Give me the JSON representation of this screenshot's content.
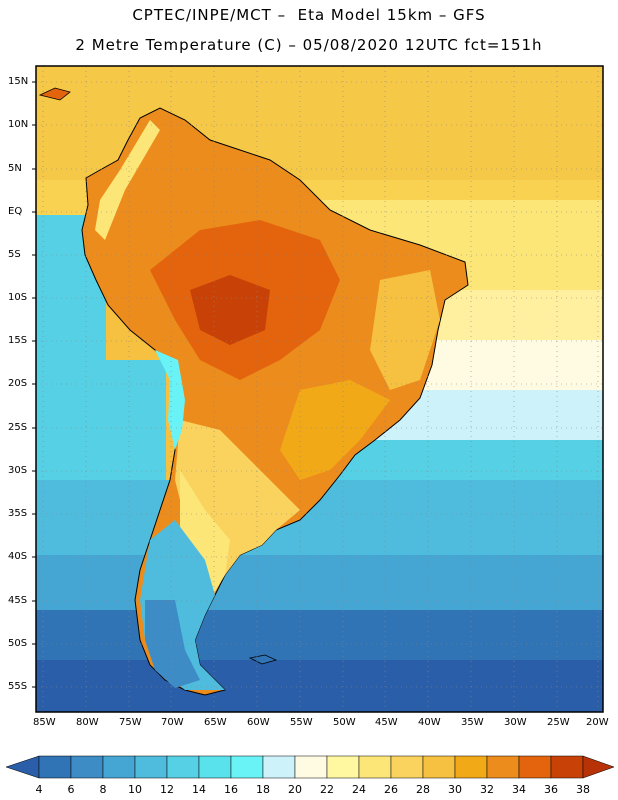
{
  "title": {
    "line1": "CPTEC/INPE/MCT –  Eta Model 15km – GFS",
    "line2": "2 Metre Temperature (C) – 05/08/2020 12UTC fct=151h"
  },
  "axes": {
    "lat_labels": [
      "15N",
      "10N",
      "5N",
      "EQ",
      "5S",
      "10S",
      "15S",
      "20S",
      "25S",
      "30S",
      "35S",
      "40S",
      "45S",
      "50S",
      "55S"
    ],
    "lon_labels": [
      "85W",
      "80W",
      "75W",
      "70W",
      "65W",
      "60W",
      "55W",
      "50W",
      "45W",
      "40W",
      "35W",
      "30W",
      "25W",
      "20W"
    ]
  },
  "colorbar": {
    "ticks": [
      "4",
      "6",
      "8",
      "10",
      "12",
      "14",
      "16",
      "18",
      "20",
      "22",
      "24",
      "26",
      "28",
      "30",
      "32",
      "34",
      "36",
      "38"
    ],
    "colors": [
      "#2a5ea8",
      "#3174b6",
      "#3d8cc6",
      "#45a6d4",
      "#4fbcde",
      "#55d0e4",
      "#5ae2ec",
      "#6af3f6",
      "#cdf2fa",
      "#fffbe2",
      "#fff8a0",
      "#fde678",
      "#fad25e",
      "#f6c040",
      "#f2a918",
      "#ec8c1c",
      "#e4640e",
      "#c84208",
      "#b73206"
    ],
    "left_arrow_color": "#2a5ea8",
    "right_arrow_color": "#b73206"
  }
}
